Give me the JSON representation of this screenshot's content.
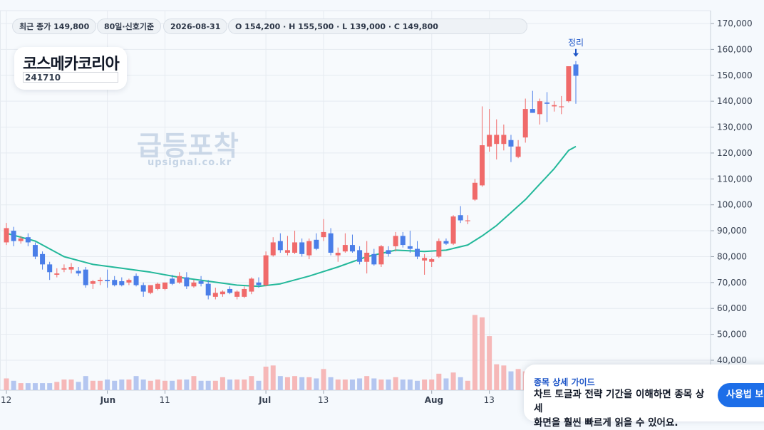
{
  "header": {
    "pills": [
      {
        "label": "최근 종가 149,800"
      },
      {
        "label": "80일·신호기준"
      },
      {
        "label": "2026-08-31"
      },
      {
        "label": "O 154,200 · H 155,500 · L 139,000 · C 149,800"
      }
    ]
  },
  "stock": {
    "name": "코스메카코리아",
    "code": "241710"
  },
  "watermark": {
    "title": "급등포착",
    "url": "upsignal.co.kr"
  },
  "guide": {
    "title": "종목 상세 가이드",
    "line1": "차트 토글과 전략 기간을 이해하면 종목 상세",
    "line2": "화면을 훨씬 빠르게 읽을 수 있어요.",
    "button": "사용법 보기"
  },
  "colors": {
    "up": "#f06a6a",
    "down": "#4a7ee8",
    "ma": "#23b89a",
    "vol_up": "#f6b8b8",
    "vol_down": "#b4c6f0",
    "signal": "#1e56c8"
  },
  "chart_data": {
    "type": "candlestick",
    "y_ticks": [
      "40,000",
      "50,000",
      "60,000",
      "70,000",
      "80,000",
      "90,000",
      "100,000",
      "110,000",
      "120,000",
      "130,000",
      "140,000",
      "150,000",
      "160,000",
      "170,000"
    ],
    "ylim": [
      34000,
      174000
    ],
    "x_ticks": [
      {
        "label": "12",
        "index": 0
      },
      {
        "label": "Jun",
        "index": 14
      },
      {
        "label": "11",
        "index": 22
      },
      {
        "label": "Jul",
        "index": 36
      },
      {
        "label": "13",
        "index": 44
      },
      {
        "label": "Aug",
        "index": 59
      },
      {
        "label": "13",
        "index": 67
      }
    ],
    "signal_label": "정리",
    "signal_index": 79,
    "candles": [
      {
        "o": 85500,
        "h": 93000,
        "l": 84500,
        "c": 91000,
        "v": 0.5
      },
      {
        "o": 90000,
        "h": 91500,
        "l": 84000,
        "c": 86000,
        "v": 0.4
      },
      {
        "o": 86000,
        "h": 88000,
        "l": 85000,
        "c": 87000,
        "v": 0.3
      },
      {
        "o": 87500,
        "h": 89000,
        "l": 84000,
        "c": 85500,
        "v": 0.3
      },
      {
        "o": 84500,
        "h": 85500,
        "l": 79000,
        "c": 80000,
        "v": 0.3
      },
      {
        "o": 81000,
        "h": 82000,
        "l": 75000,
        "c": 77000,
        "v": 0.3
      },
      {
        "o": 77000,
        "h": 78000,
        "l": 71000,
        "c": 74000,
        "v": 0.3
      },
      {
        "o": 73000,
        "h": 75500,
        "l": 72000,
        "c": 73500,
        "v": 0.35
      },
      {
        "o": 75000,
        "h": 77000,
        "l": 74000,
        "c": 75500,
        "v": 0.45
      },
      {
        "o": 75000,
        "h": 77500,
        "l": 73500,
        "c": 76000,
        "v": 0.45
      },
      {
        "o": 74500,
        "h": 76000,
        "l": 72500,
        "c": 73500,
        "v": 0.35
      },
      {
        "o": 75000,
        "h": 76000,
        "l": 68000,
        "c": 69000,
        "v": 0.6
      },
      {
        "o": 69500,
        "h": 71000,
        "l": 67500,
        "c": 70500,
        "v": 0.4
      },
      {
        "o": 70500,
        "h": 72000,
        "l": 69000,
        "c": 71000,
        "v": 0.4
      },
      {
        "o": 71000,
        "h": 75000,
        "l": 68000,
        "c": 70500,
        "v": 0.45
      },
      {
        "o": 71000,
        "h": 72500,
        "l": 68500,
        "c": 69000,
        "v": 0.4
      },
      {
        "o": 70500,
        "h": 72000,
        "l": 68500,
        "c": 69000,
        "v": 0.45
      },
      {
        "o": 70000,
        "h": 71500,
        "l": 69000,
        "c": 71000,
        "v": 0.45
      },
      {
        "o": 72500,
        "h": 73500,
        "l": 68500,
        "c": 69000,
        "v": 0.6
      },
      {
        "o": 69000,
        "h": 70000,
        "l": 64500,
        "c": 66500,
        "v": 0.45
      },
      {
        "o": 66000,
        "h": 69000,
        "l": 65500,
        "c": 69000,
        "v": 0.4
      },
      {
        "o": 67500,
        "h": 70000,
        "l": 67000,
        "c": 69500,
        "v": 0.45
      },
      {
        "o": 67500,
        "h": 70000,
        "l": 67000,
        "c": 70000,
        "v": 0.4
      },
      {
        "o": 71500,
        "h": 73000,
        "l": 69000,
        "c": 69500,
        "v": 0.4
      },
      {
        "o": 70000,
        "h": 74000,
        "l": 69500,
        "c": 72500,
        "v": 0.45
      },
      {
        "o": 72000,
        "h": 74000,
        "l": 67500,
        "c": 68500,
        "v": 0.45
      },
      {
        "o": 68500,
        "h": 71000,
        "l": 68000,
        "c": 70000,
        "v": 0.6
      },
      {
        "o": 70500,
        "h": 72500,
        "l": 68500,
        "c": 69500,
        "v": 0.4
      },
      {
        "o": 69500,
        "h": 71000,
        "l": 63500,
        "c": 65000,
        "v": 0.4
      },
      {
        "o": 64500,
        "h": 68000,
        "l": 63500,
        "c": 66000,
        "v": 0.4
      },
      {
        "o": 65500,
        "h": 67000,
        "l": 64500,
        "c": 66500,
        "v": 0.55
      },
      {
        "o": 67500,
        "h": 68500,
        "l": 65500,
        "c": 66000,
        "v": 0.45
      },
      {
        "o": 64500,
        "h": 67000,
        "l": 63500,
        "c": 66500,
        "v": 0.45
      },
      {
        "o": 64500,
        "h": 68500,
        "l": 64000,
        "c": 67500,
        "v": 0.45
      },
      {
        "o": 66500,
        "h": 72000,
        "l": 65500,
        "c": 71500,
        "v": 0.6
      },
      {
        "o": 70000,
        "h": 72000,
        "l": 68000,
        "c": 69000,
        "v": 0.4
      },
      {
        "o": 69000,
        "h": 82000,
        "l": 68500,
        "c": 80500,
        "v": 1.0
      },
      {
        "o": 80500,
        "h": 87500,
        "l": 80000,
        "c": 85500,
        "v": 1.05
      },
      {
        "o": 86000,
        "h": 89000,
        "l": 81500,
        "c": 82500,
        "v": 0.6
      },
      {
        "o": 81500,
        "h": 88000,
        "l": 80500,
        "c": 82500,
        "v": 0.55
      },
      {
        "o": 81500,
        "h": 90000,
        "l": 81000,
        "c": 85500,
        "v": 0.6
      },
      {
        "o": 85500,
        "h": 87000,
        "l": 80000,
        "c": 81000,
        "v": 0.55
      },
      {
        "o": 80500,
        "h": 87000,
        "l": 79000,
        "c": 86000,
        "v": 0.55
      },
      {
        "o": 86500,
        "h": 89000,
        "l": 82500,
        "c": 83000,
        "v": 0.5
      },
      {
        "o": 87500,
        "h": 94500,
        "l": 86000,
        "c": 89500,
        "v": 0.9
      },
      {
        "o": 89000,
        "h": 91000,
        "l": 80500,
        "c": 81500,
        "v": 0.55
      },
      {
        "o": 80500,
        "h": 83500,
        "l": 78000,
        "c": 81500,
        "v": 0.45
      },
      {
        "o": 82000,
        "h": 89000,
        "l": 81500,
        "c": 84500,
        "v": 0.45
      },
      {
        "o": 84500,
        "h": 88500,
        "l": 81500,
        "c": 82000,
        "v": 0.45
      },
      {
        "o": 82500,
        "h": 84000,
        "l": 77000,
        "c": 78000,
        "v": 0.5
      },
      {
        "o": 78000,
        "h": 86000,
        "l": 73500,
        "c": 81500,
        "v": 0.6
      },
      {
        "o": 81000,
        "h": 83000,
        "l": 76500,
        "c": 77000,
        "v": 0.5
      },
      {
        "o": 77000,
        "h": 84500,
        "l": 76000,
        "c": 84000,
        "v": 0.45
      },
      {
        "o": 82500,
        "h": 84000,
        "l": 80000,
        "c": 81000,
        "v": 0.45
      },
      {
        "o": 84000,
        "h": 89500,
        "l": 82000,
        "c": 88000,
        "v": 0.55
      },
      {
        "o": 88000,
        "h": 89500,
        "l": 83500,
        "c": 84500,
        "v": 0.45
      },
      {
        "o": 84000,
        "h": 90000,
        "l": 81500,
        "c": 83000,
        "v": 0.45
      },
      {
        "o": 83000,
        "h": 86000,
        "l": 79000,
        "c": 80000,
        "v": 0.4
      },
      {
        "o": 78500,
        "h": 81000,
        "l": 73000,
        "c": 79500,
        "v": 0.45
      },
      {
        "o": 78000,
        "h": 79500,
        "l": 76000,
        "c": 79000,
        "v": 0.45
      },
      {
        "o": 80000,
        "h": 87000,
        "l": 79500,
        "c": 86000,
        "v": 0.7
      },
      {
        "o": 86000,
        "h": 87000,
        "l": 84500,
        "c": 85000,
        "v": 0.5
      },
      {
        "o": 85000,
        "h": 96000,
        "l": 84500,
        "c": 95500,
        "v": 0.75
      },
      {
        "o": 96000,
        "h": 99500,
        "l": 93000,
        "c": 94000,
        "v": 0.55
      },
      {
        "o": 94000,
        "h": 96000,
        "l": 92500,
        "c": 94000,
        "v": 0.4
      },
      {
        "o": 102000,
        "h": 110000,
        "l": 101500,
        "c": 108500,
        "v": 3.2
      },
      {
        "o": 107500,
        "h": 138000,
        "l": 107000,
        "c": 123000,
        "v": 3.1
      },
      {
        "o": 122500,
        "h": 137000,
        "l": 120500,
        "c": 127000,
        "v": 2.3
      },
      {
        "o": 123500,
        "h": 133000,
        "l": 117500,
        "c": 127000,
        "v": 1.1
      },
      {
        "o": 123500,
        "h": 131000,
        "l": 121000,
        "c": 127000,
        "v": 1.05
      },
      {
        "o": 125000,
        "h": 127000,
        "l": 116500,
        "c": 122500,
        "v": 0.8
      },
      {
        "o": 118500,
        "h": 125000,
        "l": 118000,
        "c": 122500,
        "v": 0.9
      },
      {
        "o": 126000,
        "h": 141000,
        "l": 124000,
        "c": 137000,
        "v": 0.8
      },
      {
        "o": 137000,
        "h": 144000,
        "l": 135500,
        "c": 135500,
        "v": 0.7
      },
      {
        "o": 135000,
        "h": 141000,
        "l": 131000,
        "c": 140000,
        "v": 0.85
      },
      {
        "o": 139500,
        "h": 143500,
        "l": 132000,
        "c": 139000,
        "v": 0.7
      },
      {
        "o": 138000,
        "h": 140000,
        "l": 136000,
        "c": 138500,
        "v": 0.7
      },
      {
        "o": 138000,
        "h": 142000,
        "l": 135000,
        "c": 138000,
        "v": 0.7
      },
      {
        "o": 140000,
        "h": 153500,
        "l": 139500,
        "c": 153500,
        "v": 0.8
      },
      {
        "o": 154200,
        "h": 155500,
        "l": 139000,
        "c": 149800,
        "v": 0.9
      }
    ],
    "ma_line": [
      [
        0,
        89000
      ],
      [
        4,
        86000
      ],
      [
        8,
        80000
      ],
      [
        12,
        77000
      ],
      [
        16,
        75500
      ],
      [
        20,
        74000
      ],
      [
        24,
        72000
      ],
      [
        28,
        70500
      ],
      [
        32,
        69000
      ],
      [
        35,
        68500
      ],
      [
        38,
        69500
      ],
      [
        42,
        72500
      ],
      [
        46,
        76000
      ],
      [
        50,
        80000
      ],
      [
        54,
        82500
      ],
      [
        58,
        82000
      ],
      [
        61,
        82500
      ],
      [
        64,
        84500
      ],
      [
        66,
        88000
      ],
      [
        68,
        92000
      ],
      [
        70,
        97000
      ],
      [
        72,
        102000
      ],
      [
        74,
        108000
      ],
      [
        76,
        114000
      ],
      [
        78,
        121000
      ],
      [
        79,
        122500
      ]
    ]
  }
}
